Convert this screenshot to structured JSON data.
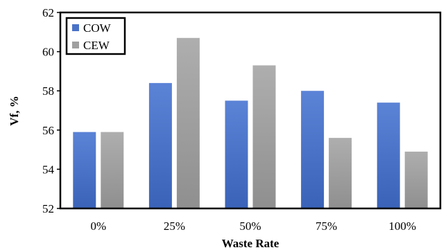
{
  "chart_data": {
    "type": "bar",
    "xlabel": "Waste Rate",
    "ylabel": "Vf, %",
    "ylim": [
      52,
      62
    ],
    "yticks": [
      52,
      54,
      56,
      58,
      60,
      62
    ],
    "categories": [
      "0%",
      "25%",
      "50%",
      "75%",
      "100%"
    ],
    "series": [
      {
        "name": "COW",
        "color": "#4a72c6",
        "values": [
          55.9,
          58.4,
          57.5,
          58.0,
          57.4
        ]
      },
      {
        "name": "CEW",
        "color": "#a0a0a0",
        "values": [
          55.9,
          60.7,
          59.3,
          55.6,
          54.9
        ]
      }
    ],
    "legend_position": "top-left",
    "grid": false
  }
}
